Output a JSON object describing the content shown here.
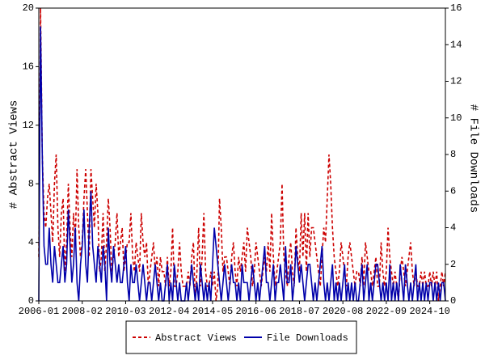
{
  "chart_data": {
    "type": "line",
    "y_label": "# Abstract Views",
    "y2_label": "# File Downloads",
    "categories": [
      "2006-01",
      null,
      null,
      null,
      null,
      null,
      null,
      null,
      null,
      null,
      null,
      null,
      null,
      null,
      null,
      null,
      null,
      null,
      null,
      null,
      null,
      null,
      null,
      null,
      null,
      "2008-02",
      null,
      null,
      null,
      null,
      null,
      null,
      null,
      null,
      null,
      null,
      null,
      null,
      null,
      null,
      null,
      null,
      null,
      null,
      null,
      null,
      null,
      null,
      null,
      null,
      "2010-03",
      null,
      null,
      null,
      null,
      null,
      null,
      null,
      null,
      null,
      null,
      null,
      null,
      null,
      null,
      null,
      null,
      null,
      null,
      null,
      null,
      null,
      null,
      null,
      null,
      "2012-04",
      null,
      null,
      null,
      null,
      null,
      null,
      null,
      null,
      null,
      null,
      null,
      null,
      null,
      null,
      null,
      null,
      null,
      null,
      null,
      null,
      null,
      null,
      null,
      null,
      "2014-05",
      null,
      null,
      null,
      null,
      null,
      null,
      null,
      null,
      null,
      null,
      null,
      null,
      null,
      null,
      null,
      null,
      null,
      null,
      null,
      null,
      null,
      null,
      null,
      null,
      "2016-06",
      null,
      null,
      null,
      null,
      null,
      null,
      null,
      null,
      null,
      null,
      null,
      null,
      null,
      null,
      null,
      null,
      null,
      null,
      null,
      null,
      null,
      null,
      null,
      null,
      "2018-07",
      null,
      null,
      null,
      null,
      null,
      null,
      null,
      null,
      null,
      null,
      null,
      null,
      null,
      null,
      null,
      null,
      null,
      null,
      null,
      null,
      null,
      null,
      null,
      null,
      "2020-08",
      null,
      null,
      null,
      null,
      null,
      null,
      null,
      null,
      null,
      null,
      null,
      null,
      null,
      null,
      null,
      null,
      null,
      null,
      null,
      null,
      null,
      null,
      null,
      null,
      "2022-09",
      null,
      null,
      null,
      null,
      null,
      null,
      null,
      null,
      null,
      null,
      null,
      null,
      null,
      null,
      null,
      null,
      null,
      null,
      null,
      null,
      null,
      null,
      null,
      null,
      "2024-10",
      null,
      null,
      null,
      null,
      null,
      null,
      null,
      null,
      null
    ],
    "series": [
      {
        "name": "Abstract Views",
        "color": "#cc0000",
        "dash": true,
        "axis": "y",
        "values": [
          3,
          20,
          10,
          6,
          5,
          7,
          8,
          6,
          4,
          8,
          10,
          5,
          3,
          6,
          7,
          2,
          4,
          8,
          5,
          3,
          6,
          4,
          9,
          5,
          3,
          4,
          7,
          9,
          6,
          3,
          9,
          7,
          5,
          8,
          6,
          2,
          3,
          6,
          2,
          4,
          7,
          5,
          2,
          3,
          4,
          6,
          3,
          4,
          5,
          2,
          3,
          4,
          4,
          6,
          3,
          2,
          4,
          3,
          2,
          6,
          4,
          3,
          4,
          1,
          2,
          3,
          4,
          2,
          3,
          1,
          3,
          2,
          2,
          1,
          3,
          1,
          2,
          5,
          1,
          1,
          2,
          4,
          2,
          1,
          1,
          1,
          2,
          1,
          3,
          4,
          0,
          2,
          5,
          1,
          3,
          6,
          2,
          1,
          1,
          2,
          1,
          2,
          0,
          1,
          7,
          5,
          2,
          3,
          3,
          2,
          1,
          3,
          4,
          2,
          1,
          3,
          2,
          3,
          4,
          2,
          5,
          4,
          3,
          1,
          2,
          4,
          3,
          2,
          1,
          2,
          3,
          2,
          4,
          2,
          6,
          3,
          1,
          2,
          3,
          4,
          8,
          3,
          2,
          1,
          3,
          4,
          2,
          1,
          5,
          3,
          2,
          6,
          3,
          6,
          2,
          6,
          3,
          5,
          5,
          4,
          3,
          2,
          1,
          3,
          5,
          4,
          7,
          10,
          8,
          5,
          3,
          2,
          1,
          2,
          4,
          3,
          2,
          1,
          3,
          4,
          3,
          2,
          1,
          2,
          2,
          1,
          3,
          1,
          4,
          3,
          2,
          2,
          1,
          2,
          3,
          1,
          1,
          4,
          2,
          1,
          2,
          5,
          3,
          2,
          1,
          2,
          1,
          0,
          2,
          3,
          2,
          1,
          2,
          3,
          4,
          2,
          1,
          2,
          1,
          1,
          2,
          1,
          2,
          1,
          1,
          2,
          1,
          2,
          1,
          2,
          0,
          1,
          2,
          1,
          2
        ]
      },
      {
        "name": "File Downloads",
        "color": "#0000aa",
        "dash": false,
        "axis": "y2",
        "values": [
          0,
          15,
          8,
          3,
          2,
          2,
          4,
          2,
          1,
          3,
          2,
          1,
          1,
          2,
          3,
          1,
          2,
          5,
          3,
          1,
          2,
          4,
          1,
          0,
          2,
          3,
          5,
          2,
          1,
          4,
          6,
          3,
          2,
          1,
          3,
          2,
          1,
          3,
          2,
          0,
          4,
          2,
          1,
          3,
          2,
          1,
          2,
          1,
          1,
          2,
          3,
          1,
          0,
          2,
          1,
          1,
          2,
          1,
          0,
          1,
          2,
          1,
          0,
          1,
          1,
          0,
          1,
          2,
          1,
          0,
          1,
          0,
          0,
          1,
          2,
          0,
          1,
          0,
          2,
          1,
          0,
          1,
          0,
          0,
          0,
          1,
          0,
          1,
          2,
          1,
          0,
          1,
          0,
          2,
          1,
          0,
          1,
          0,
          1,
          0,
          2,
          4,
          3,
          2,
          1,
          0,
          1,
          2,
          1,
          0,
          1,
          2,
          1,
          1,
          0,
          1,
          0,
          2,
          1,
          1,
          1,
          0,
          1,
          2,
          1,
          0,
          1,
          0,
          1,
          2,
          3,
          1,
          1,
          0,
          1,
          2,
          0,
          1,
          1,
          2,
          1,
          0,
          3,
          1,
          1,
          2,
          0,
          1,
          3,
          2,
          1,
          2,
          1,
          0,
          1,
          2,
          2,
          1,
          0,
          1,
          0,
          1,
          2,
          3,
          1,
          0,
          1,
          0,
          1,
          2,
          0,
          1,
          0,
          1,
          0,
          1,
          2,
          0,
          1,
          0,
          1,
          0,
          1,
          0,
          0,
          1,
          2,
          0,
          1,
          2,
          0,
          1,
          0,
          1,
          2,
          2,
          1,
          0,
          1,
          0,
          1,
          0,
          2,
          0,
          1,
          0,
          1,
          0,
          2,
          1,
          0,
          2,
          1,
          0,
          1,
          0,
          1,
          2,
          0,
          1,
          0,
          1,
          0,
          1,
          0,
          1,
          1,
          0,
          1,
          0,
          1,
          0,
          1,
          1,
          0
        ]
      }
    ],
    "ylim": [
      0,
      20
    ],
    "yticks": [
      0,
      4,
      8,
      12,
      16,
      20
    ],
    "y2lim": [
      0,
      16
    ],
    "y2ticks": [
      0,
      2,
      4,
      6,
      8,
      10,
      12,
      14,
      16
    ],
    "legend": "bottom"
  }
}
